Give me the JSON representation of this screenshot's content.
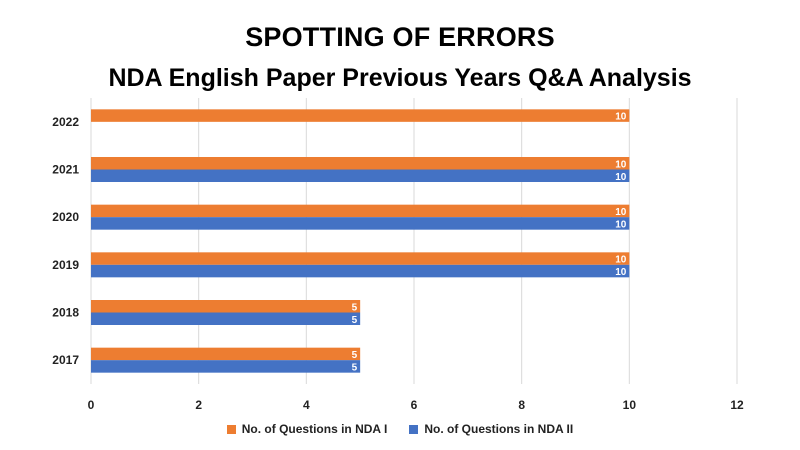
{
  "chart_data": {
    "type": "bar",
    "orientation": "horizontal",
    "title": "SPOTTING OF ERRORS",
    "subtitle": "NDA English Paper Previous Years Q&A Analysis",
    "categories": [
      "2022",
      "2021",
      "2020",
      "2019",
      "2018",
      "2017"
    ],
    "series": [
      {
        "name": "No. of Questions in NDA I",
        "color": "#ED7D31",
        "values": [
          10,
          10,
          10,
          10,
          5,
          5
        ]
      },
      {
        "name": "No. of Questions in NDA II",
        "color": "#4472C4",
        "values": [
          null,
          10,
          10,
          10,
          5,
          5
        ]
      }
    ],
    "xlim": [
      0,
      12
    ],
    "xticks": [
      0,
      2,
      4,
      6,
      8,
      10,
      12
    ],
    "grid": true,
    "data_labels": true,
    "legend": "bottom"
  }
}
